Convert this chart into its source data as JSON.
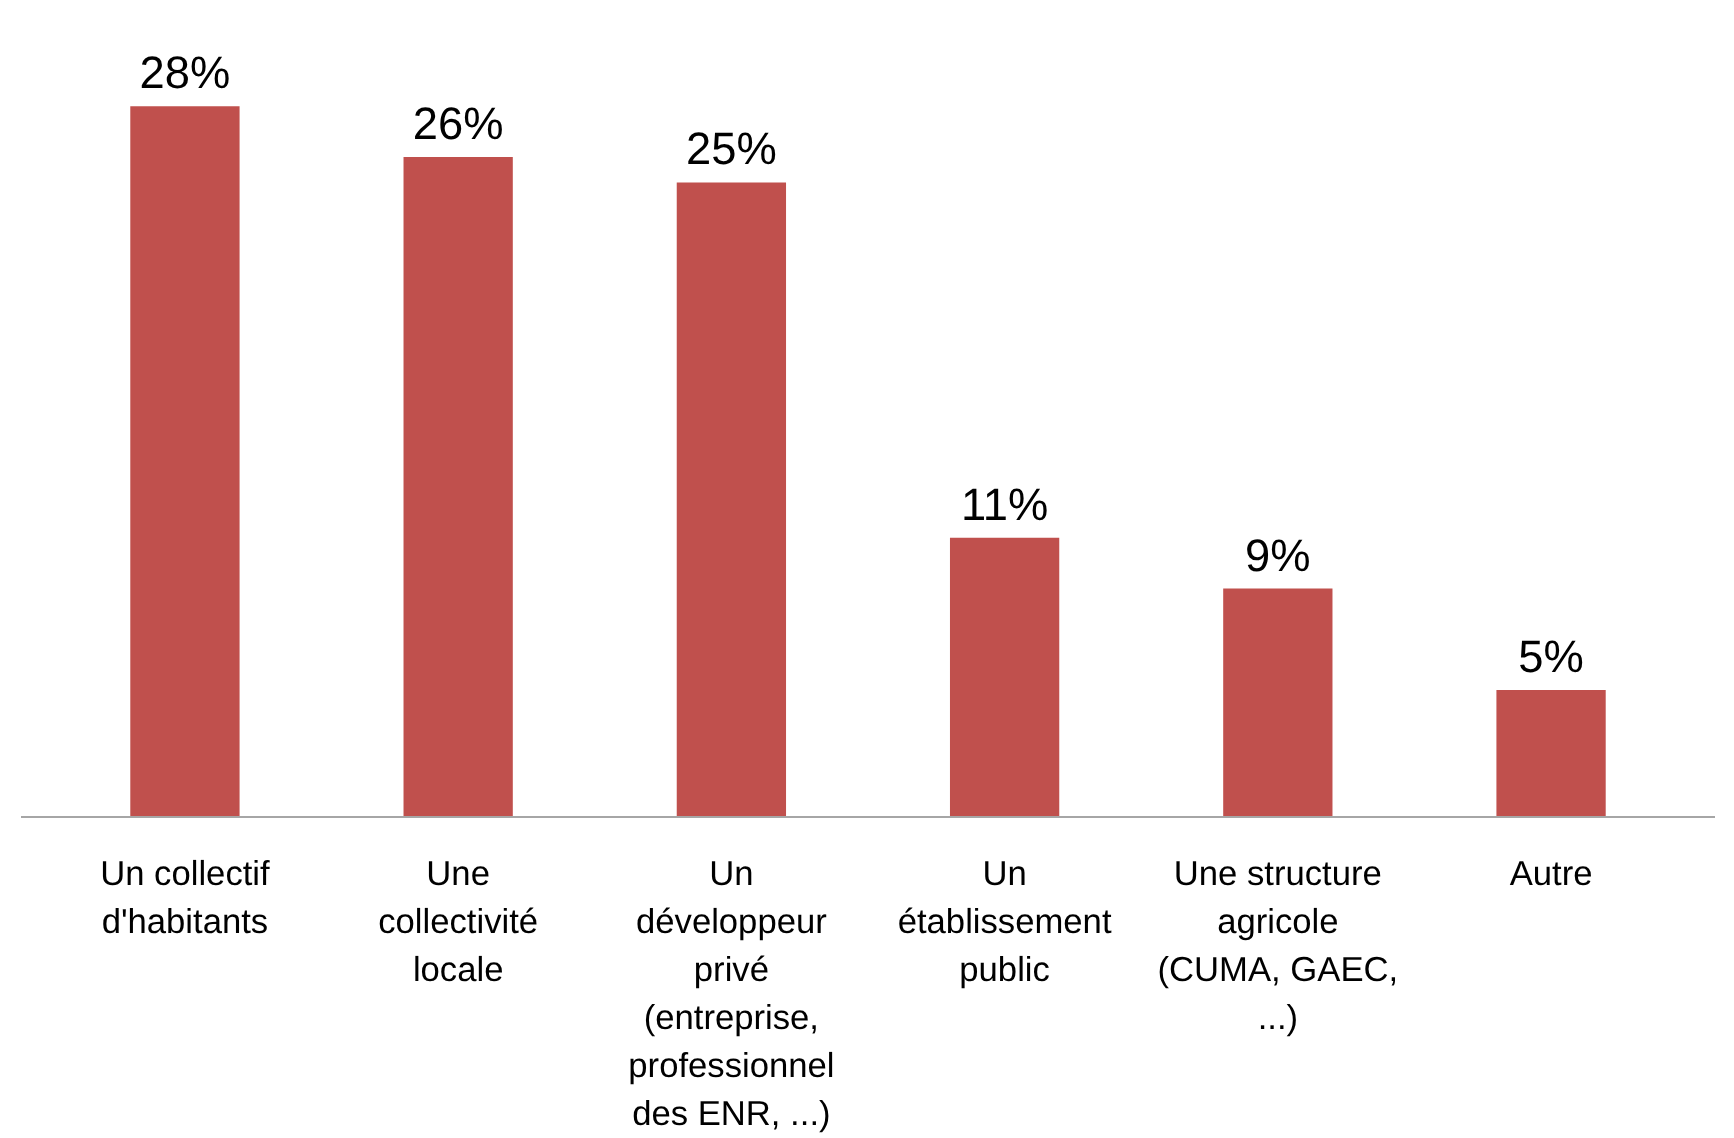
{
  "chart_data": {
    "type": "bar",
    "categories": [
      "Un collectif d'habitants",
      "Une collectivité locale",
      "Un développeur privé (entreprise, professionnel des ENR, ...)",
      "Un établissement public",
      "Une structure agricole (CUMA, GAEC, ...)",
      "Autre"
    ],
    "values": [
      28,
      26,
      25,
      11,
      9,
      5
    ],
    "value_labels": [
      "28%",
      "26%",
      "25%",
      "11%",
      "9%",
      "5%"
    ],
    "color": "#c0504d",
    "grid": false
  }
}
